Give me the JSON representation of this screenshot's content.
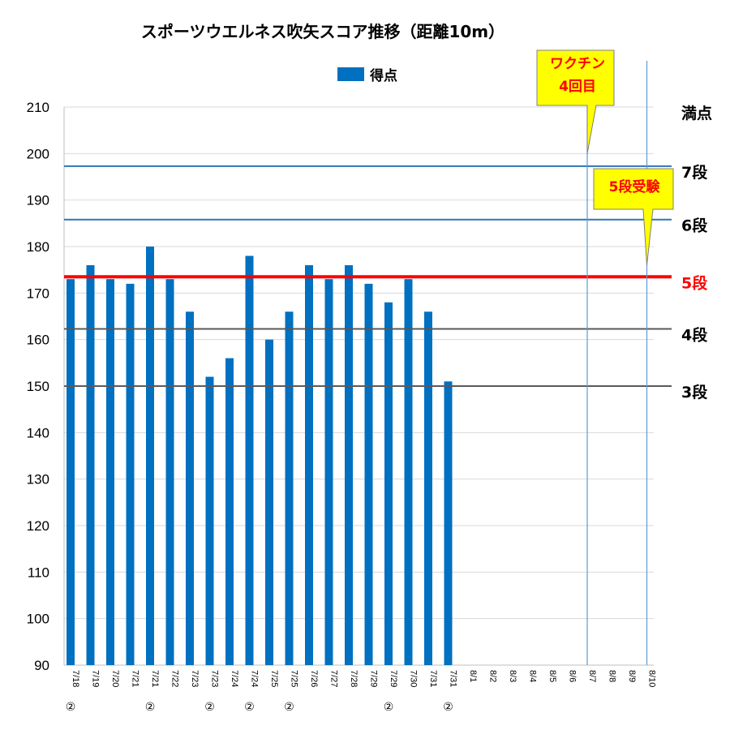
{
  "chart_data": {
    "type": "bar",
    "title": "スポーツウエルネス吹矢スコア推移（距離10m）",
    "legend": [
      {
        "name": "得点",
        "color": "#0070c0"
      }
    ],
    "legend_placement": "top-center",
    "ylim": [
      90,
      210
    ],
    "yticks": [
      90,
      100,
      110,
      120,
      130,
      140,
      150,
      160,
      170,
      180,
      190,
      200,
      210
    ],
    "grid": true,
    "categories": [
      "7/18",
      "7/19",
      "7/20",
      "7/21",
      "7/21",
      "7/22",
      "7/23",
      "7/23",
      "7/24",
      "7/24",
      "7/25",
      "7/25",
      "7/26",
      "7/27",
      "7/28",
      "7/29",
      "7/29",
      "7/30",
      "7/31",
      "7/31",
      "8/1",
      "8/2",
      "8/3",
      "8/4",
      "8/5",
      "8/6",
      "8/7",
      "8/8",
      "8/9",
      "8/10"
    ],
    "category_marks": [
      "②",
      "",
      "",
      "",
      "②",
      "",
      "",
      "②",
      "",
      "②",
      "",
      "②",
      "",
      "",
      "",
      "",
      "②",
      "",
      "",
      "②",
      "",
      "",
      "",
      "",
      "",
      "",
      "",
      "",
      "",
      ""
    ],
    "series": [
      {
        "name": "得点",
        "color": "#0070c0",
        "values": [
          173,
          176,
          173,
          172,
          180,
          173,
          166,
          152,
          156,
          178,
          160,
          166,
          176,
          173,
          176,
          172,
          168,
          173,
          166,
          151,
          null,
          null,
          null,
          null,
          null,
          null,
          null,
          null,
          null,
          null
        ]
      }
    ],
    "reference_lines": [
      {
        "label": "満点",
        "value": 210,
        "color": "#d9d9d9",
        "label_color": "#000000",
        "width": 1
      },
      {
        "label": "7段",
        "value": 197.3,
        "color": "#2e75b6",
        "label_color": "#000000",
        "width": 2
      },
      {
        "label": "6段",
        "value": 185.8,
        "color": "#2e75b6",
        "label_color": "#000000",
        "width": 2
      },
      {
        "label": "5段",
        "value": 173.5,
        "color": "#ff0000",
        "label_color": "#ff0000",
        "width": 4
      },
      {
        "label": "4段",
        "value": 162.3,
        "color": "#595959",
        "label_color": "#000000",
        "width": 2
      },
      {
        "label": "3段",
        "value": 150,
        "color": "#595959",
        "label_color": "#000000",
        "width": 2
      }
    ],
    "annotations": [
      {
        "text_lines": [
          "ワクチン",
          "4回目"
        ],
        "category_index": 26,
        "pointer_value": 200
      },
      {
        "text_lines": [
          "5段受験"
        ],
        "category_index": 29,
        "pointer_value": 176
      }
    ]
  }
}
